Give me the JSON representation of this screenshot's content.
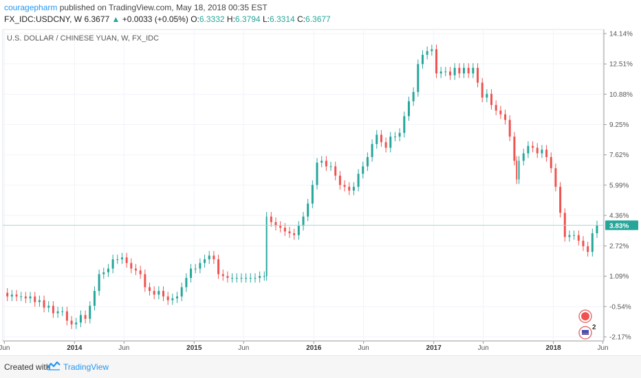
{
  "header": {
    "author": "couragepharm",
    "published_text": "published on TradingView.com, May 18, 2018 00:35 EST",
    "symbol": "FX_IDC:USDCNY, W",
    "last_price": "6.3677",
    "change_arrow": "▲",
    "change": "+0.0033 (+0.05%)",
    "open_label": "O:",
    "open": "6.3332",
    "high_label": "H:",
    "high": "6.3794",
    "low_label": "L:",
    "low": "6.3314",
    "close_label": "C:",
    "close": "6.3677"
  },
  "footer": {
    "created_with": "Created with",
    "brand": "TradingView"
  },
  "badges": {
    "event_count": "2"
  },
  "colors": {
    "up": "#26a69a",
    "down": "#ef5350",
    "grid": "#f0f3fa",
    "axis": "#555555",
    "last_price_bg": "#26a69a"
  },
  "chart_data": {
    "type": "candlestick",
    "title": "U.S. DOLLAR / CHINESE YUAN, W, FX_IDC",
    "y_axis_scale": "percent",
    "y_ticks": [
      "14.14%",
      "12.51%",
      "10.88%",
      "9.25%",
      "7.62%",
      "5.99%",
      "4.36%",
      "2.72%",
      "1.09%",
      "-0.54%",
      "-2.17%"
    ],
    "y_range": [
      -2.17,
      14.14
    ],
    "x_ticks": [
      "Jun",
      "2014",
      "Jun",
      "2015",
      "Jun",
      "2016",
      "Jun",
      "2017",
      "Jun",
      "2018",
      "Jun"
    ],
    "x_range": [
      "2013-05-27",
      "2018-06-04"
    ],
    "last_value_label": "3.83%",
    "last_value": 3.83,
    "grid": true,
    "series": [
      {
        "type": "weekly close (%)",
        "points": [
          [
            "2013-05-27",
            0.2
          ],
          [
            "2013-06-10",
            0.0
          ],
          [
            "2013-06-24",
            0.1
          ],
          [
            "2013-07-08",
            0.0
          ],
          [
            "2013-07-22",
            0.0
          ],
          [
            "2013-08-05",
            -0.1
          ],
          [
            "2013-08-19",
            0.0
          ],
          [
            "2013-09-02",
            -0.3
          ],
          [
            "2013-09-16",
            -0.2
          ],
          [
            "2013-09-30",
            -0.6
          ],
          [
            "2013-10-14",
            -0.5
          ],
          [
            "2013-10-28",
            -0.9
          ],
          [
            "2013-11-11",
            -0.8
          ],
          [
            "2013-11-25",
            -0.8
          ],
          [
            "2013-12-09",
            -1.3
          ],
          [
            "2013-12-23",
            -1.5
          ],
          [
            "2014-01-06",
            -1.4
          ],
          [
            "2014-01-20",
            -1.0
          ],
          [
            "2014-02-03",
            -1.2
          ],
          [
            "2014-02-17",
            -0.5
          ],
          [
            "2014-03-03",
            0.3
          ],
          [
            "2014-03-17",
            1.2
          ],
          [
            "2014-03-31",
            1.3
          ],
          [
            "2014-04-14",
            1.5
          ],
          [
            "2014-04-28",
            2.0
          ],
          [
            "2014-05-12",
            2.0
          ],
          [
            "2014-05-26",
            2.1
          ],
          [
            "2014-06-09",
            1.8
          ],
          [
            "2014-06-23",
            1.5
          ],
          [
            "2014-07-07",
            1.4
          ],
          [
            "2014-07-21",
            1.2
          ],
          [
            "2014-08-04",
            0.5
          ],
          [
            "2014-08-18",
            0.3
          ],
          [
            "2014-09-01",
            0.1
          ],
          [
            "2014-09-15",
            0.3
          ],
          [
            "2014-09-29",
            0.0
          ],
          [
            "2014-10-13",
            -0.2
          ],
          [
            "2014-10-27",
            -0.1
          ],
          [
            "2014-11-10",
            0.0
          ],
          [
            "2014-11-24",
            0.5
          ],
          [
            "2014-12-08",
            1.0
          ],
          [
            "2014-12-22",
            1.5
          ],
          [
            "2015-01-05",
            1.5
          ],
          [
            "2015-01-19",
            1.8
          ],
          [
            "2015-02-02",
            2.0
          ],
          [
            "2015-02-16",
            2.2
          ],
          [
            "2015-03-02",
            2.0
          ],
          [
            "2015-03-16",
            1.2
          ],
          [
            "2015-03-30",
            1.1
          ],
          [
            "2015-04-13",
            1.0
          ],
          [
            "2015-04-27",
            1.0
          ],
          [
            "2015-05-11",
            1.0
          ],
          [
            "2015-05-25",
            1.0
          ],
          [
            "2015-06-08",
            1.0
          ],
          [
            "2015-06-22",
            1.0
          ],
          [
            "2015-07-06",
            1.0
          ],
          [
            "2015-07-20",
            1.1
          ],
          [
            "2015-08-03",
            1.1
          ],
          [
            "2015-08-10",
            4.3
          ],
          [
            "2015-08-24",
            4.0
          ],
          [
            "2015-09-07",
            3.8
          ],
          [
            "2015-09-21",
            3.7
          ],
          [
            "2015-10-05",
            3.5
          ],
          [
            "2015-10-19",
            3.4
          ],
          [
            "2015-11-02",
            3.3
          ],
          [
            "2015-11-16",
            3.8
          ],
          [
            "2015-11-30",
            4.3
          ],
          [
            "2015-12-14",
            5.0
          ],
          [
            "2015-12-28",
            6.0
          ],
          [
            "2016-01-11",
            7.2
          ],
          [
            "2016-01-25",
            7.3
          ],
          [
            "2016-02-08",
            7.0
          ],
          [
            "2016-02-22",
            7.0
          ],
          [
            "2016-03-07",
            6.5
          ],
          [
            "2016-03-21",
            6.0
          ],
          [
            "2016-04-04",
            5.9
          ],
          [
            "2016-04-18",
            5.7
          ],
          [
            "2016-05-02",
            5.9
          ],
          [
            "2016-05-16",
            6.6
          ],
          [
            "2016-05-30",
            7.0
          ],
          [
            "2016-06-13",
            7.5
          ],
          [
            "2016-06-27",
            8.2
          ],
          [
            "2016-07-11",
            8.7
          ],
          [
            "2016-07-25",
            8.3
          ],
          [
            "2016-08-08",
            8.0
          ],
          [
            "2016-08-22",
            8.6
          ],
          [
            "2016-09-05",
            8.6
          ],
          [
            "2016-09-19",
            8.8
          ],
          [
            "2016-10-03",
            9.7
          ],
          [
            "2016-10-17",
            10.5
          ],
          [
            "2016-10-31",
            11.0
          ],
          [
            "2016-11-14",
            12.5
          ],
          [
            "2016-11-28",
            13.0
          ],
          [
            "2016-12-12",
            13.2
          ],
          [
            "2016-12-26",
            13.3
          ],
          [
            "2017-01-09",
            12.0
          ],
          [
            "2017-01-23",
            12.1
          ],
          [
            "2017-02-06",
            12.1
          ],
          [
            "2017-02-20",
            11.9
          ],
          [
            "2017-03-06",
            12.3
          ],
          [
            "2017-03-20",
            12.0
          ],
          [
            "2017-04-03",
            12.3
          ],
          [
            "2017-04-17",
            12.0
          ],
          [
            "2017-05-01",
            12.3
          ],
          [
            "2017-05-15",
            11.5
          ],
          [
            "2017-05-29",
            10.7
          ],
          [
            "2017-06-12",
            10.9
          ],
          [
            "2017-06-26",
            10.3
          ],
          [
            "2017-07-10",
            10.0
          ],
          [
            "2017-07-24",
            9.8
          ],
          [
            "2017-08-07",
            9.5
          ],
          [
            "2017-08-21",
            8.6
          ],
          [
            "2017-09-04",
            7.3
          ],
          [
            "2017-09-11",
            6.3
          ],
          [
            "2017-09-18",
            7.3
          ],
          [
            "2017-10-02",
            7.7
          ],
          [
            "2017-10-16",
            8.1
          ],
          [
            "2017-10-30",
            8.0
          ],
          [
            "2017-11-13",
            7.7
          ],
          [
            "2017-11-27",
            7.9
          ],
          [
            "2017-12-11",
            7.5
          ],
          [
            "2017-12-25",
            6.9
          ],
          [
            "2018-01-08",
            5.9
          ],
          [
            "2018-01-22",
            4.5
          ],
          [
            "2018-02-05",
            3.2
          ],
          [
            "2018-02-19",
            3.3
          ],
          [
            "2018-03-05",
            3.3
          ],
          [
            "2018-03-19",
            3.0
          ],
          [
            "2018-04-02",
            2.7
          ],
          [
            "2018-04-16",
            2.4
          ],
          [
            "2018-04-30",
            3.4
          ],
          [
            "2018-05-14",
            3.83
          ]
        ]
      }
    ]
  }
}
